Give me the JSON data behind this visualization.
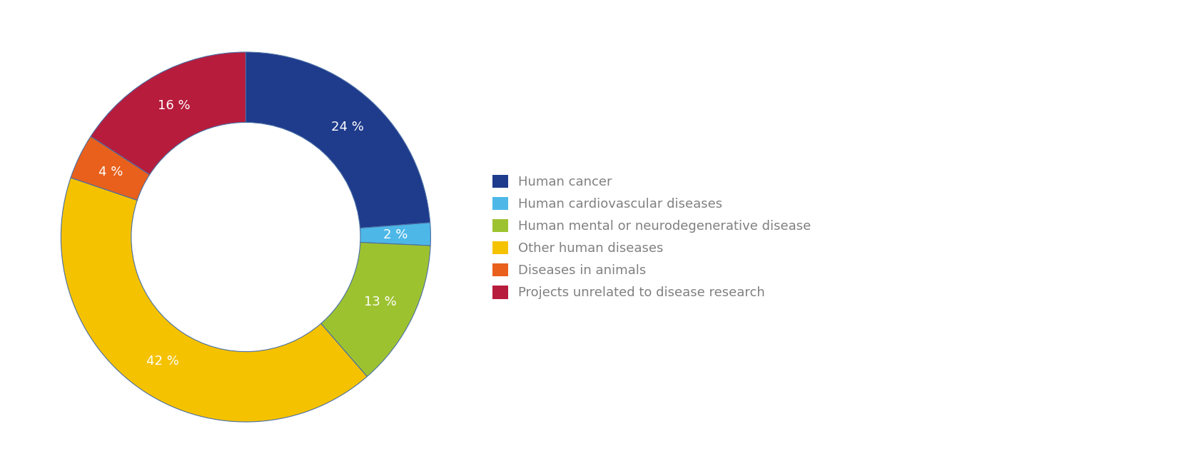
{
  "labels": [
    "Human cancer",
    "Human cardiovascular diseases",
    "Human mental or neurodegenerative disease",
    "Other human diseases",
    "Diseases in animals",
    "Projects unrelated to disease research"
  ],
  "values": [
    24,
    2,
    13,
    42,
    4,
    16
  ],
  "colors": [
    "#1f3b8c",
    "#4db8e8",
    "#9dc230",
    "#f5c200",
    "#e8601c",
    "#b71c3c"
  ],
  "pct_labels": [
    "24 %",
    "2 %",
    "13 %",
    "42 %",
    "4 %",
    "16 %"
  ],
  "wedge_edge_color": "#4a6fa5",
  "wedge_edge_width": 0.8,
  "donut_width": 0.38,
  "label_color": "#ffffff",
  "legend_text_color": "#808080",
  "background_color": "#ffffff",
  "legend_fontsize": 13,
  "pct_fontsize": 13
}
